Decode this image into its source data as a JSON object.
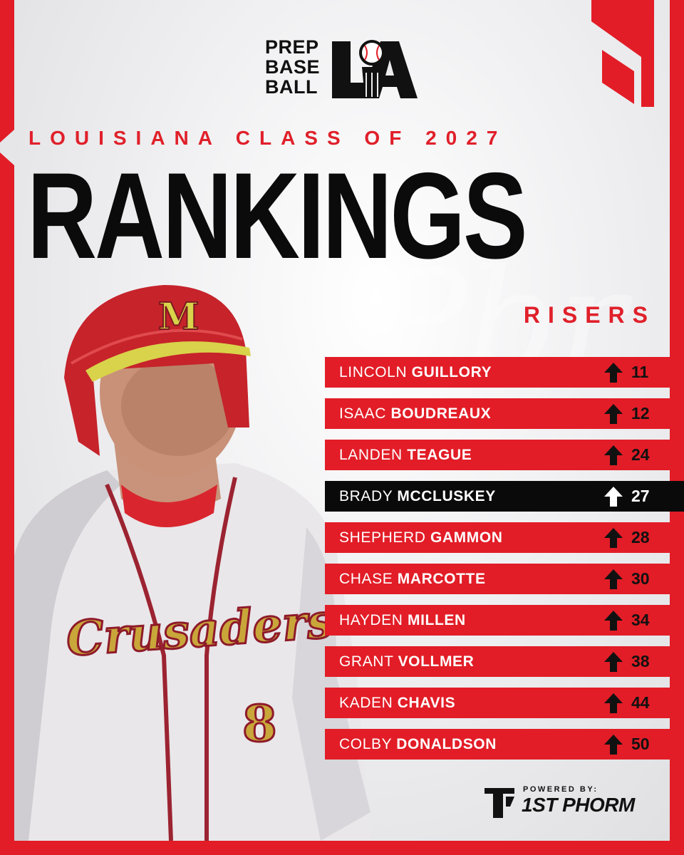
{
  "logo": {
    "line1": "PREP",
    "line2": "BASE",
    "line3": "BALL",
    "mark_text": "LA"
  },
  "header": {
    "subtitle": "LOUISIANA CLASS OF 2027",
    "title": "RANKINGS",
    "tag": "RISERS"
  },
  "player_photo": {
    "helmet_letter": "M",
    "jersey_script": "Crusaders",
    "jersey_number": "8"
  },
  "rankings": [
    {
      "first": "LINCOLN",
      "last": "GUILLORY",
      "rank": "11",
      "highlight": false
    },
    {
      "first": "ISAAC",
      "last": "BOUDREAUX",
      "rank": "12",
      "highlight": false
    },
    {
      "first": "LANDEN",
      "last": "TEAGUE",
      "rank": "24",
      "highlight": false
    },
    {
      "first": "BRADY",
      "last": "MCCLUSKEY",
      "rank": "27",
      "highlight": true
    },
    {
      "first": "SHEPHERD",
      "last": "GAMMON",
      "rank": "28",
      "highlight": false
    },
    {
      "first": "CHASE",
      "last": "MARCOTTE",
      "rank": "30",
      "highlight": false
    },
    {
      "first": "HAYDEN",
      "last": "MILLEN",
      "rank": "34",
      "highlight": false
    },
    {
      "first": "GRANT",
      "last": "VOLLMER",
      "rank": "38",
      "highlight": false
    },
    {
      "first": "KADEN",
      "last": "CHAVIS",
      "rank": "44",
      "highlight": false
    },
    {
      "first": "COLBY",
      "last": "DONALDSON",
      "rank": "50",
      "highlight": false
    }
  ],
  "sponsor": {
    "powered_by": "POWERED BY:",
    "brand": "1ST PHORM"
  },
  "colors": {
    "accent_red": "#e21d27",
    "highlight_black": "#0a0a0a",
    "text_dark": "#0b0b0b"
  },
  "icons": {
    "rank_arrow": "arrow-up-icon",
    "logo_ball": "baseball-icon"
  }
}
